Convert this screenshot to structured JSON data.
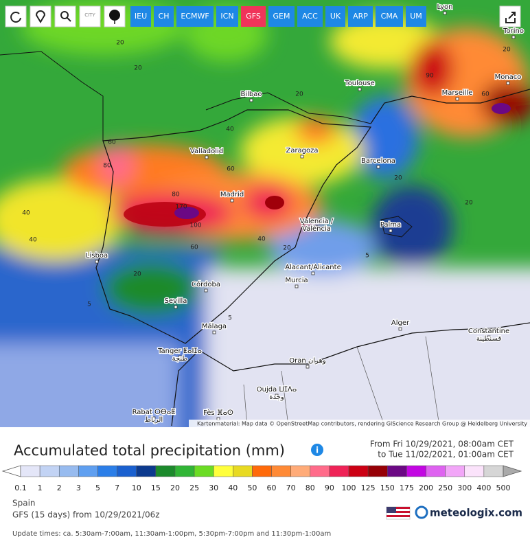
{
  "toolbar": {
    "icon_label": "CITY",
    "models": [
      "IEU",
      "CH",
      "ECMWF",
      "ICN",
      "GFS",
      "GEM",
      "ACC",
      "UK",
      "ARP",
      "CMA",
      "UM"
    ],
    "active": "GFS",
    "color": "#1e88e5",
    "active_color": "#f0345a"
  },
  "map": {
    "cities": [
      [
        "Lyon"
      ],
      [
        "Torino"
      ],
      [
        "Monaco"
      ],
      [
        "Bilbao"
      ],
      [
        "Toulouse"
      ],
      [
        "Marseille"
      ],
      [
        "Zaragoza"
      ],
      [
        "Valladolid"
      ],
      [
        "Barcelona"
      ],
      [
        "Madrid"
      ],
      [
        "Valencia /",
        "València"
      ],
      [
        "Palma"
      ],
      [
        "Lisboa"
      ],
      [
        "Alacant/Alicante"
      ],
      [
        "Murcia"
      ],
      [
        "Córdoba"
      ],
      [
        "Sevilla"
      ],
      [
        "Málaga"
      ],
      [
        "Alger"
      ],
      [
        "Constantine",
        "قسنطينة"
      ],
      [
        "Tanger ⵟⴰⵏⵊⴰ",
        "طنجة"
      ],
      [
        "Oran وهران"
      ],
      [
        "Oujda ⵡⵊⴷⴰ",
        "وجدة"
      ],
      [
        "Rabat ⵔⴱⴰⵟ",
        "الرباط"
      ],
      [
        "Fès ⴼⴰⵙ"
      ]
    ],
    "contour_labels": [
      20,
      20,
      40,
      40,
      60,
      80,
      80,
      170,
      100,
      60,
      60,
      40,
      40,
      20,
      20,
      20,
      5,
      5,
      5,
      20,
      20,
      90,
      60,
      20
    ],
    "attribution": "Kartenmaterial: Map data © OpenStreetMap contributors, rendering GIScience Research Group @ Heidelberg University"
  },
  "header": {
    "title": "Accumulated total precipitation (mm)",
    "from": "From Fri 10/29/2021, 08:00am CET",
    "to": "to Tue 11/02/2021, 01:00am CET"
  },
  "legend": {
    "labels": [
      "0.1",
      "1",
      "2",
      "3",
      "5",
      "7",
      "10",
      "15",
      "20",
      "25",
      "30",
      "40",
      "50",
      "60",
      "70",
      "80",
      "90",
      "100",
      "125",
      "150",
      "175",
      "200",
      "250",
      "300",
      "400",
      "500"
    ],
    "colors": [
      "#e4e6f8",
      "#c2d3f4",
      "#97bbef",
      "#5f9ff0",
      "#2b7ee8",
      "#1a60cf",
      "#0c3a8e",
      "#1c8a2c",
      "#31b536",
      "#6bdc24",
      "#ffff3c",
      "#e8da22",
      "#ff6a0a",
      "#ff8a36",
      "#ffab78",
      "#ff6b8a",
      "#ef2357",
      "#cc0014",
      "#960006",
      "#6b0884",
      "#c206e2",
      "#de62f0",
      "#f2a6f8",
      "#fbe3fb",
      "#d6d6d6"
    ]
  },
  "footer": {
    "region": "Spain",
    "run": "GFS (15 days) from 10/29/2021/06z",
    "logo": "meteologix.com",
    "updates": "Update times: ca. 5:30am-7:00am, 11:30am-1:00pm, 5:30pm-7:00pm and 11:30pm-1:00am"
  }
}
